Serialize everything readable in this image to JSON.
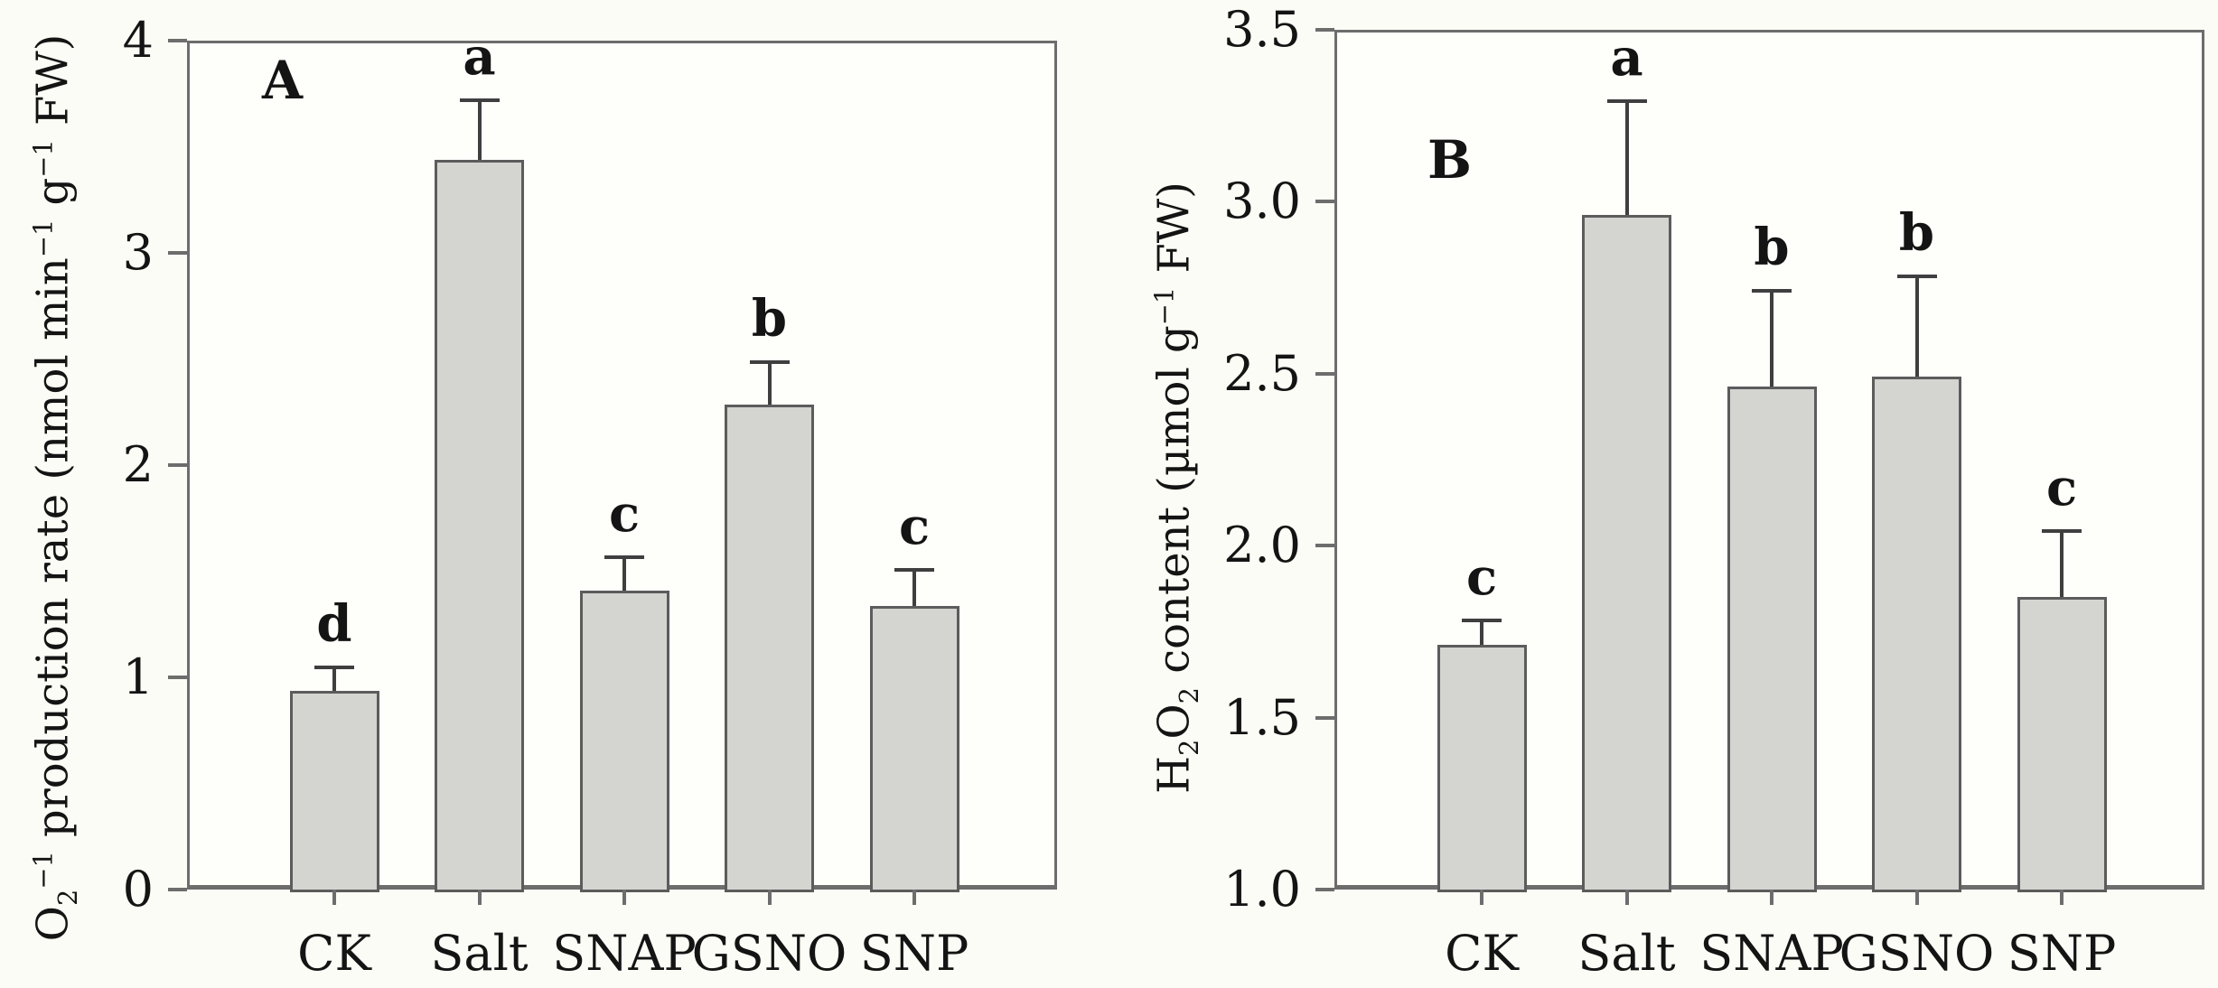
{
  "figure_type": "two-panel scientific bar chart",
  "chart_data": [
    {
      "type": "bar",
      "panel_letter": "A",
      "title": "",
      "xlabel": "",
      "ylabel": "O₂⁻¹ production rate (nmol min⁻¹ g⁻¹ FW)",
      "ylabel_parts": [
        {
          "t": "O"
        },
        {
          "sub": "2"
        },
        {
          "sup": "−1"
        },
        {
          "t": " production rate (nmol min"
        },
        {
          "sup": "−1"
        },
        {
          "t": " g"
        },
        {
          "sup": "−1"
        },
        {
          "t": " FW)"
        }
      ],
      "categories": [
        "CK",
        "Salt",
        "SNAP",
        "GSNO",
        "SNP"
      ],
      "values": [
        0.95,
        3.45,
        1.42,
        2.3,
        1.35
      ],
      "error_plus": [
        0.11,
        0.28,
        0.16,
        0.2,
        0.17
      ],
      "sig_letters": [
        "d",
        "a",
        "c",
        "b",
        "c"
      ],
      "ylim": [
        0,
        4
      ],
      "yticks": [
        0,
        1,
        2,
        3,
        4
      ],
      "ytick_labels": [
        "0",
        "1",
        "2",
        "3",
        "4"
      ],
      "grid": "off",
      "legend": "none",
      "bar_fill_color": "#d4d4d1",
      "bar_border_color": "#5c5c5c",
      "axis_color": "#6d6d6d"
    },
    {
      "type": "bar",
      "panel_letter": "B",
      "title": "",
      "xlabel": "",
      "ylabel": "H₂O₂ content (µmol g⁻¹ FW)",
      "ylabel_parts": [
        {
          "t": "H"
        },
        {
          "sub": "2"
        },
        {
          "t": "O"
        },
        {
          "sub": "2"
        },
        {
          "t": " content (µmol g"
        },
        {
          "sup": "−1"
        },
        {
          "t": " FW)"
        }
      ],
      "categories": [
        "CK",
        "Salt",
        "SNAP",
        "GSNO",
        "SNP"
      ],
      "values": [
        1.72,
        2.97,
        2.47,
        2.5,
        1.86
      ],
      "error_plus": [
        0.07,
        0.33,
        0.28,
        0.29,
        0.19
      ],
      "sig_letters": [
        "c",
        "a",
        "b",
        "b",
        "c"
      ],
      "ylim": [
        1.0,
        3.5
      ],
      "yticks": [
        1.0,
        1.5,
        2.0,
        2.5,
        3.0,
        3.5
      ],
      "ytick_labels": [
        "1.0",
        "1.5",
        "2.0",
        "2.5",
        "3.0",
        "3.5"
      ],
      "grid": "off",
      "legend": "none",
      "bar_fill_color": "#d4d4d1",
      "bar_border_color": "#5c5c5c",
      "axis_color": "#6d6d6d"
    }
  ]
}
